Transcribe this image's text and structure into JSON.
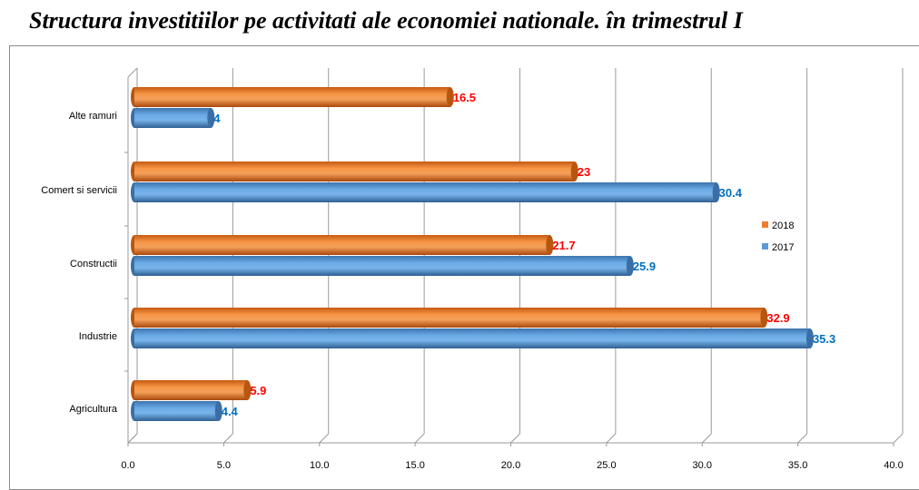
{
  "chart_data": {
    "type": "bar",
    "orientation": "horizontal",
    "style": "3d-cylinder",
    "title": "Structura investitiilor pe activitati ale economiei nationale. în trimestrul I",
    "categories": [
      "Alte ramuri",
      "Comert si servicii",
      "Constructii",
      "Industrie",
      "Agricultura"
    ],
    "series": [
      {
        "name": "2018",
        "values": [
          16.5,
          23,
          21.7,
          32.9,
          5.9
        ],
        "labels": [
          "16.5",
          "23",
          "21.7",
          "32.9",
          "5.9"
        ],
        "color": "#ed7d31",
        "label_color": "#ff0000"
      },
      {
        "name": "2017",
        "values": [
          4,
          30.4,
          25.9,
          35.3,
          4.4
        ],
        "labels": [
          "4",
          "30.4",
          "25.9",
          "35.3",
          "4.4"
        ],
        "color": "#5b9bd5",
        "label_color": "#0070c0"
      }
    ],
    "xlim": [
      0,
      40
    ],
    "xticks": [
      "0.0",
      "5.0",
      "10.0",
      "15.0",
      "20.0",
      "25.0",
      "30.0",
      "35.0",
      "40.0"
    ],
    "grid": true,
    "legend_position": "right"
  }
}
